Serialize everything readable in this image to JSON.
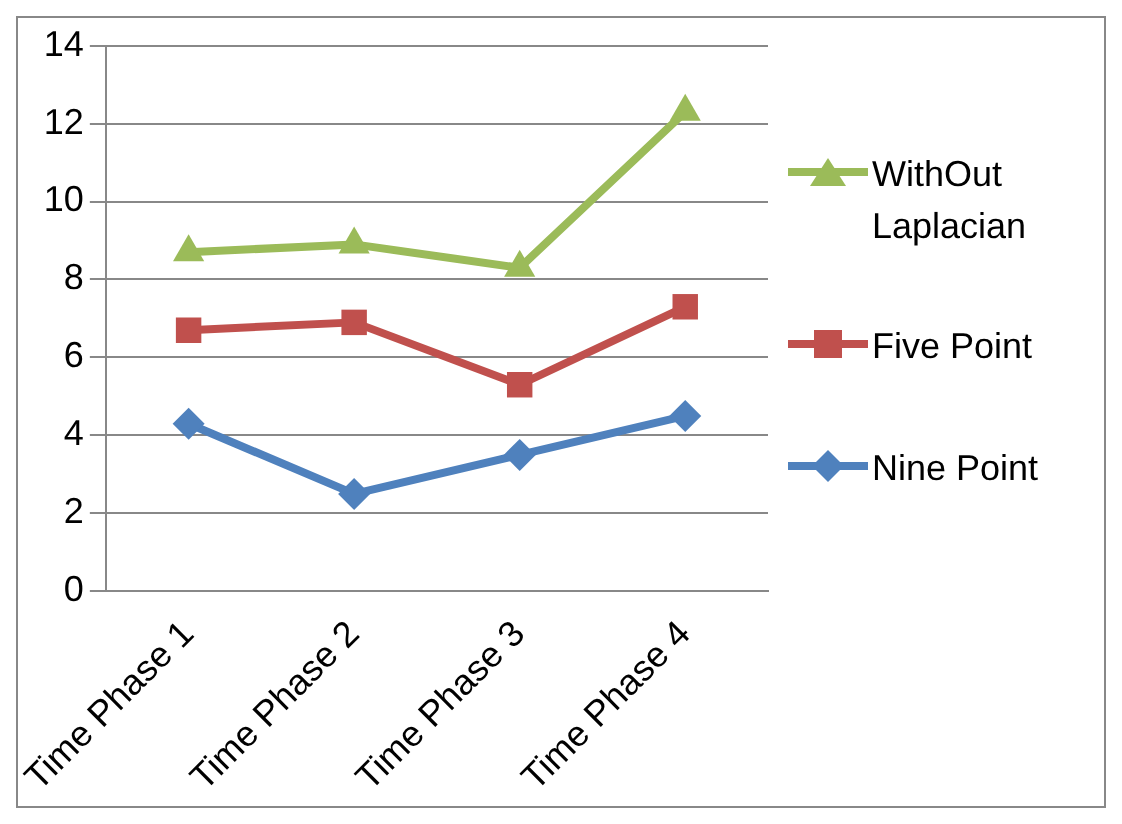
{
  "chart_data": {
    "type": "line",
    "categories": [
      "Time Phase 1",
      "Time Phase 2",
      "Time Phase 3",
      "Time Phase 4"
    ],
    "series": [
      {
        "name": "WithOut Laplacian",
        "color": "#9bbb59",
        "marker": "triangle",
        "values": [
          8.7,
          8.9,
          8.3,
          12.3
        ]
      },
      {
        "name": "Five Point",
        "color": "#c0504d",
        "marker": "square",
        "values": [
          6.7,
          6.9,
          5.3,
          7.3
        ]
      },
      {
        "name": "Nine Point",
        "color": "#4f81bd",
        "marker": "diamond",
        "values": [
          4.3,
          2.5,
          3.5,
          4.5
        ]
      }
    ],
    "ylim": [
      0,
      14
    ],
    "yticks": [
      0,
      2,
      4,
      6,
      8,
      10,
      12,
      14
    ],
    "grid": "y",
    "legend": "right"
  }
}
